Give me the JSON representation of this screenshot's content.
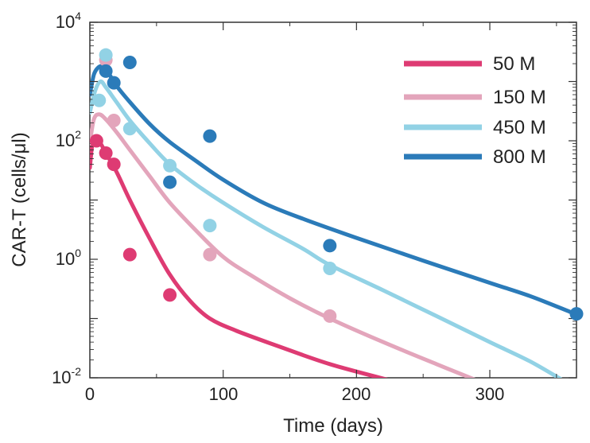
{
  "chart_data": {
    "type": "scatter",
    "title": "",
    "xlabel": "Time (days)",
    "ylabel": "CAR-T (cells/μl)",
    "xlim": [
      0,
      365
    ],
    "ylim_log10": [
      -2,
      4
    ],
    "y_scale": "log",
    "x_ticks": [
      {
        "value": 0,
        "label": "0"
      },
      {
        "value": 100,
        "label": "100"
      },
      {
        "value": 200,
        "label": "200"
      },
      {
        "value": 300,
        "label": "300"
      }
    ],
    "y_ticks": [
      {
        "exp": -2,
        "base": "10",
        "sup": "-2"
      },
      {
        "exp": 0,
        "base": "10",
        "sup": "0"
      },
      {
        "exp": 2,
        "base": "10",
        "sup": "2"
      },
      {
        "exp": 4,
        "base": "10",
        "sup": "4"
      }
    ],
    "legend_position": "top-right",
    "series": [
      {
        "name": "50 M",
        "color": "#de3b73",
        "fit_curve": [
          [
            0,
            35
          ],
          [
            2,
            90
          ],
          [
            5,
            100
          ],
          [
            8,
            90
          ],
          [
            12,
            62
          ],
          [
            20,
            30
          ],
          [
            30,
            10
          ],
          [
            45,
            2.2
          ],
          [
            60,
            0.55
          ],
          [
            75,
            0.2
          ],
          [
            90,
            0.1
          ],
          [
            110,
            0.062
          ],
          [
            140,
            0.035
          ],
          [
            180,
            0.017
          ],
          [
            228,
            0.0087
          ]
        ],
        "points": [
          [
            5,
            100
          ],
          [
            12,
            62
          ],
          [
            18,
            40
          ],
          [
            30,
            1.2
          ],
          [
            60,
            0.25
          ]
        ]
      },
      {
        "name": "150 M",
        "color": "#e3a5bb",
        "fit_curve": [
          [
            0,
            90
          ],
          [
            3,
            230
          ],
          [
            7,
            280
          ],
          [
            12,
            230
          ],
          [
            20,
            140
          ],
          [
            30,
            70
          ],
          [
            45,
            25
          ],
          [
            60,
            9
          ],
          [
            80,
            3
          ],
          [
            100,
            1.1
          ],
          [
            120,
            0.55
          ],
          [
            150,
            0.22
          ],
          [
            180,
            0.1
          ],
          [
            220,
            0.04
          ],
          [
            260,
            0.017
          ],
          [
            292,
            0.0087
          ]
        ],
        "points": [
          [
            12,
            2300
          ],
          [
            18,
            220
          ],
          [
            90,
            1.2
          ],
          [
            180,
            0.11
          ]
        ]
      },
      {
        "name": "450 M",
        "color": "#92d2e5",
        "fit_curve": [
          [
            0,
            300
          ],
          [
            4,
            700
          ],
          [
            8,
            1000
          ],
          [
            12,
            800
          ],
          [
            20,
            450
          ],
          [
            30,
            220
          ],
          [
            45,
            90
          ],
          [
            60,
            40
          ],
          [
            80,
            18
          ],
          [
            100,
            9
          ],
          [
            130,
            3.5
          ],
          [
            160,
            1.5
          ],
          [
            180,
            0.8
          ],
          [
            220,
            0.3
          ],
          [
            260,
            0.11
          ],
          [
            300,
            0.04
          ],
          [
            330,
            0.019
          ],
          [
            355,
            0.009
          ]
        ],
        "points": [
          [
            7,
            480
          ],
          [
            12,
            2800
          ],
          [
            30,
            160
          ],
          [
            60,
            38
          ],
          [
            90,
            3.7
          ],
          [
            180,
            0.7
          ]
        ]
      },
      {
        "name": "800 M",
        "color": "#2b7bb9",
        "fit_curve": [
          [
            0,
            600
          ],
          [
            3,
            1300
          ],
          [
            6,
            1700
          ],
          [
            9,
            1800
          ],
          [
            13,
            1500
          ],
          [
            20,
            850
          ],
          [
            30,
            450
          ],
          [
            45,
            190
          ],
          [
            60,
            95
          ],
          [
            80,
            45
          ],
          [
            100,
            22
          ],
          [
            130,
            9
          ],
          [
            160,
            4.8
          ],
          [
            200,
            2.3
          ],
          [
            250,
            0.95
          ],
          [
            300,
            0.4
          ],
          [
            330,
            0.24
          ],
          [
            360,
            0.13
          ]
        ],
        "points": [
          [
            12,
            1500
          ],
          [
            18,
            950
          ],
          [
            30,
            2100
          ],
          [
            60,
            20
          ],
          [
            90,
            120
          ],
          [
            180,
            1.7
          ],
          [
            365,
            0.12
          ]
        ]
      }
    ]
  }
}
